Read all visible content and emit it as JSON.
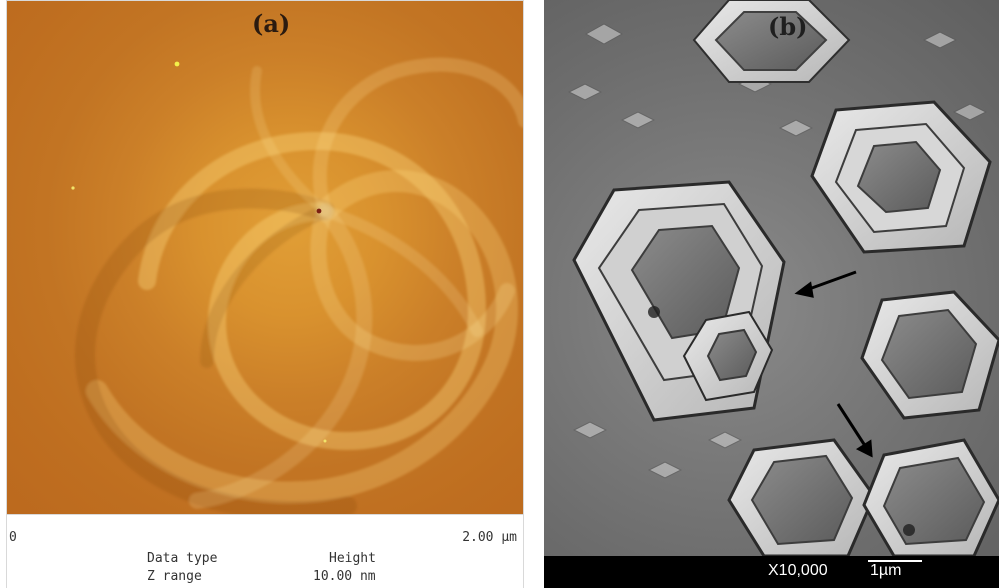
{
  "panel_a": {
    "label": "(a)",
    "scale_left": "0",
    "scale_right": "2.00 µm",
    "info": [
      {
        "key": "Data type",
        "value": "Height"
      },
      {
        "key": "Z range",
        "value": "10.00 nm"
      }
    ]
  },
  "panel_b": {
    "label": "(b)",
    "magnification": "X10,000",
    "scale": "1µm"
  }
}
